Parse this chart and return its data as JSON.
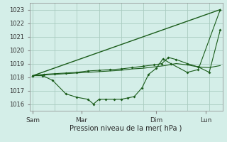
{
  "background_color": "#d4eee8",
  "grid_color": "#aaccc0",
  "line_color": "#1a5c1a",
  "xlabel": "Pression niveau de la mer( hPa )",
  "ylim": [
    1015.5,
    1023.5
  ],
  "yticks": [
    1016,
    1017,
    1018,
    1019,
    1020,
    1021,
    1022,
    1023
  ],
  "xlim": [
    -0.15,
    8.6
  ],
  "xtick_positions": [
    0,
    2,
    4,
    6,
    8
  ],
  "xtick_labels": [
    "Sam",
    "Mar",
    "",
    "Dim",
    "Lun"
  ],
  "vline_positions": [
    0,
    2,
    4,
    6,
    8
  ],
  "line1_x": [
    0,
    8.5
  ],
  "line1_y": [
    1018.1,
    1023.0
  ],
  "line2_x": [
    0,
    0.45,
    0.9,
    1.5,
    2.0,
    2.5,
    2.75,
    3.0,
    3.3,
    3.7,
    4.0,
    4.3,
    4.6,
    4.95,
    5.25,
    5.6,
    5.9,
    6.25,
    7.0,
    7.5,
    8.5
  ],
  "line2_y": [
    1018.1,
    1018.1,
    1017.75,
    1016.75,
    1016.5,
    1016.35,
    1016.0,
    1016.35,
    1016.35,
    1016.35,
    1016.35,
    1016.45,
    1016.55,
    1017.2,
    1018.2,
    1018.65,
    1019.35,
    1019.0,
    1018.35,
    1018.55,
    1023.0
  ],
  "line3_x": [
    0,
    0.5,
    1.0,
    1.5,
    2.0,
    2.5,
    3.0,
    3.5,
    4.0,
    4.5,
    5.0,
    5.5,
    6.0,
    6.5,
    7.0,
    7.5,
    8.0,
    8.5
  ],
  "line3_y": [
    1018.1,
    1018.15,
    1018.2,
    1018.25,
    1018.3,
    1018.35,
    1018.4,
    1018.45,
    1018.5,
    1018.6,
    1018.65,
    1018.75,
    1018.85,
    1019.0,
    1018.9,
    1018.75,
    1018.7,
    1018.85
  ],
  "line4_x": [
    0,
    0.5,
    1.0,
    1.5,
    2.0,
    2.5,
    3.0,
    3.5,
    4.0,
    4.5,
    5.0,
    5.5,
    5.85,
    6.15,
    6.5,
    7.0,
    7.5,
    8.0,
    8.5
  ],
  "line4_y": [
    1018.1,
    1018.2,
    1018.25,
    1018.3,
    1018.35,
    1018.45,
    1018.5,
    1018.55,
    1018.6,
    1018.7,
    1018.8,
    1018.9,
    1019.0,
    1019.45,
    1019.3,
    1019.0,
    1018.75,
    1018.35,
    1021.5
  ]
}
